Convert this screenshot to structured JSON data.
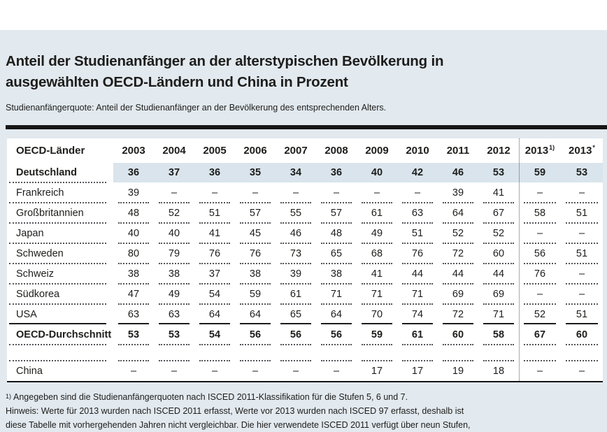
{
  "page": {
    "title_line1": "Anteil der Studienanfänger an der alterstypischen Bevölkerung in",
    "title_line2": "ausgewählten OECD-Ländern und China in Prozent",
    "subtitle": "Studienanfängerquote: Anteil der Studienanfänger an der Bevölkerung des entsprechenden Alters."
  },
  "chart_data": {
    "type": "table",
    "title": "Anteil der Studienanfänger an der alterstypischen Bevölkerung in ausgewählten OECD-Ländern und China in Prozent",
    "unit": "Prozent",
    "corner_header": "OECD-Länder",
    "year_columns": [
      "2003",
      "2004",
      "2005",
      "2006",
      "2007",
      "2008",
      "2009",
      "2010",
      "2011",
      "2012"
    ],
    "special_columns": [
      {
        "label": "2013",
        "sup": "1)"
      },
      {
        "label": "2013",
        "sup": "*"
      }
    ],
    "rows": [
      {
        "country": "Deutschland",
        "values": [
          "36",
          "37",
          "36",
          "35",
          "34",
          "36",
          "40",
          "42",
          "46",
          "53",
          "59",
          "53"
        ],
        "style": "highlighted-bold"
      },
      {
        "country": "Frankreich",
        "values": [
          "39",
          "–",
          "–",
          "–",
          "–",
          "–",
          "–",
          "–",
          "39",
          "41",
          "–",
          "–"
        ]
      },
      {
        "country": "Großbritannien",
        "values": [
          "48",
          "52",
          "51",
          "57",
          "55",
          "57",
          "61",
          "63",
          "64",
          "67",
          "58",
          "51"
        ]
      },
      {
        "country": "Japan",
        "values": [
          "40",
          "40",
          "41",
          "45",
          "46",
          "48",
          "49",
          "51",
          "52",
          "52",
          "–",
          "–"
        ]
      },
      {
        "country": "Schweden",
        "values": [
          "80",
          "79",
          "76",
          "76",
          "73",
          "65",
          "68",
          "76",
          "72",
          "60",
          "56",
          "51"
        ]
      },
      {
        "country": "Schweiz",
        "values": [
          "38",
          "38",
          "37",
          "38",
          "39",
          "38",
          "41",
          "44",
          "44",
          "44",
          "76",
          "–"
        ]
      },
      {
        "country": "Südkorea",
        "values": [
          "47",
          "49",
          "54",
          "59",
          "61",
          "71",
          "71",
          "71",
          "69",
          "69",
          "–",
          "–"
        ]
      },
      {
        "country": "USA",
        "values": [
          "63",
          "63",
          "64",
          "64",
          "65",
          "64",
          "70",
          "74",
          "72",
          "71",
          "52",
          "51"
        ]
      },
      {
        "country": "OECD-Durchschnitt",
        "values": [
          "53",
          "53",
          "54",
          "56",
          "56",
          "56",
          "59",
          "61",
          "60",
          "58",
          "67",
          "60"
        ],
        "style": "bold"
      },
      {
        "country": "China",
        "values": [
          "–",
          "–",
          "–",
          "–",
          "–",
          "–",
          "17",
          "17",
          "19",
          "18",
          "–",
          "–"
        ]
      }
    ]
  },
  "footnotes": {
    "fn1_sup": "1)",
    "fn1_text": "Angegeben sind die Studienanfängerquoten nach ISCED 2011-Klassifikation für die Stufen 5, 6 und 7.",
    "note_line1": "Hinweis: Werte für 2013 wurden nach ISCED 2011 erfasst, Werte vor 2013 wurden nach ISCED 97 erfasst, deshalb ist",
    "note_line2": "diese Tabelle mit vorhergehenden Jahren nicht vergleichbar. Die hier verwendete ISCED 2011 verfügt über neun Stufen,"
  },
  "colors": {
    "page_background": "#e2e9ef",
    "table_background": "#ffffff",
    "highlight_row": "#d9e4ec",
    "divider_bar": "#161616",
    "text": "#1d1d1b"
  }
}
